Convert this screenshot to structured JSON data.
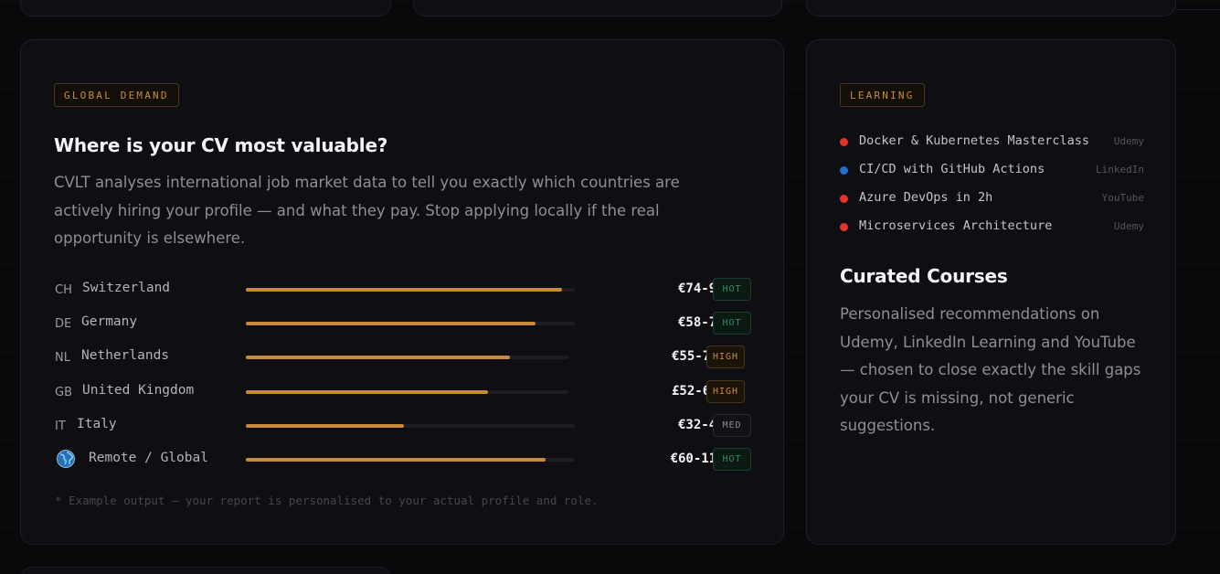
{
  "demand_card": {
    "tag": "GLOBAL DEMAND",
    "heading": "Where is your CV most valuable?",
    "description": "CVLT analyses international job market data to tell you exactly which countries are actively hiring your profile — and what they pay. Stop applying locally if the real opportunity is elsewhere.",
    "rows": [
      {
        "code": "CH",
        "icon": "",
        "country": "Switzerland",
        "demand": 0.96,
        "salary": "€74-92k",
        "badge": "HOT",
        "badge_type": "hot"
      },
      {
        "code": "DE",
        "icon": "",
        "country": "Germany",
        "demand": 0.88,
        "salary": "€58-78k",
        "badge": "HOT",
        "badge_type": "hot"
      },
      {
        "code": "NL",
        "icon": "",
        "country": "Netherlands",
        "demand": 0.82,
        "salary": "€55-72k",
        "badge": "HIGH",
        "badge_type": "high"
      },
      {
        "code": "GB",
        "icon": "",
        "country": "United Kingdom",
        "demand": 0.75,
        "salary": "£52-68k",
        "badge": "HIGH",
        "badge_type": "high"
      },
      {
        "code": "IT",
        "icon": "",
        "country": "Italy",
        "demand": 0.48,
        "salary": "€32-48k",
        "badge": "MED",
        "badge_type": "med"
      },
      {
        "code": "",
        "icon": "globe-icon",
        "country": "Remote / Global",
        "demand": 0.91,
        "salary": "€60-110k",
        "badge": "HOT",
        "badge_type": "hot"
      }
    ],
    "footnote": "* Example output — your report is personalised to your actual profile and role."
  },
  "learning_card": {
    "tag": "LEARNING",
    "courses": [
      {
        "title": "Docker & Kubernetes Masterclass",
        "provider": "Udemy",
        "dot_color": "#e5322b"
      },
      {
        "title": "CI/CD with GitHub Actions",
        "provider": "LinkedIn",
        "dot_color": "#1f6fd1"
      },
      {
        "title": "Azure DevOps in 2h",
        "provider": "YouTube",
        "dot_color": "#e5322b"
      },
      {
        "title": "Microservices Architecture",
        "provider": "Udemy",
        "dot_color": "#e5322b"
      }
    ],
    "heading": "Curated Courses",
    "description": "Personalised recommendations on Udemy, LinkedIn Learning and YouTube — chosen to close exactly the skill gaps your CV is missing, not generic suggestions."
  }
}
